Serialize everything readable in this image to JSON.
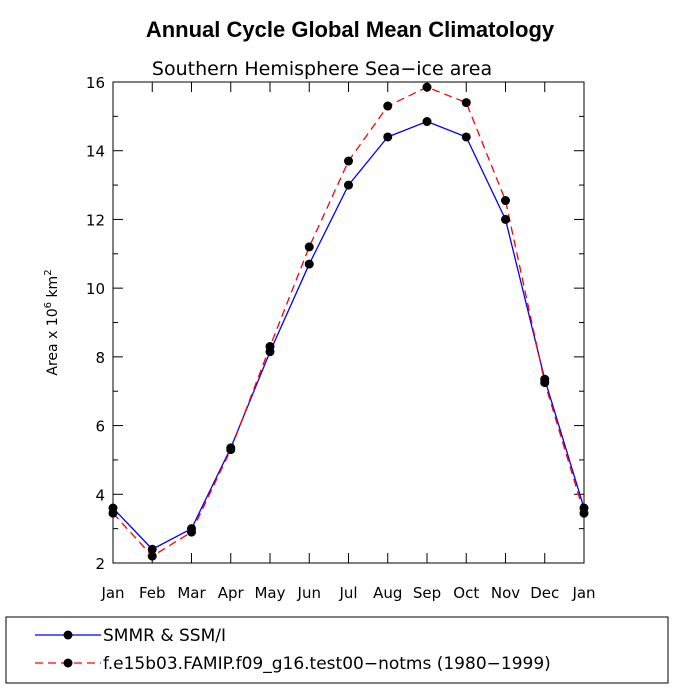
{
  "chart_data": {
    "type": "line",
    "title": "Annual Cycle Global Mean Climatology",
    "subtitle": "Southern Hemisphere Sea−ice area",
    "ylabel": "Area x 10",
    "ylabel_sup1": "6",
    "ylabel_mid": " km",
    "ylabel_sup2": "2",
    "xlabel": "",
    "categories": [
      "Jan",
      "Feb",
      "Mar",
      "Apr",
      "May",
      "Jun",
      "Jul",
      "Aug",
      "Sep",
      "Oct",
      "Nov",
      "Dec",
      "Jan"
    ],
    "ylim": [
      2,
      16
    ],
    "yticks": [
      2,
      4,
      6,
      8,
      10,
      12,
      14,
      16
    ],
    "grid": false,
    "legend_placement": "bottom",
    "series": [
      {
        "name": "SMMR & SSM/I",
        "color": "#0000ff",
        "dash": "solid",
        "values": [
          3.6,
          2.4,
          3.0,
          5.35,
          8.15,
          10.7,
          13.0,
          14.4,
          14.85,
          14.4,
          12.0,
          7.35,
          3.6
        ]
      },
      {
        "name": "f.e15b03.FAMIP.f09_g16.test00−notms (1980−1999)",
        "color": "#ff0000",
        "dash": "dashed",
        "values": [
          3.45,
          2.2,
          2.9,
          5.3,
          8.3,
          11.2,
          13.7,
          15.3,
          15.85,
          15.4,
          12.55,
          7.25,
          3.45
        ]
      }
    ]
  }
}
